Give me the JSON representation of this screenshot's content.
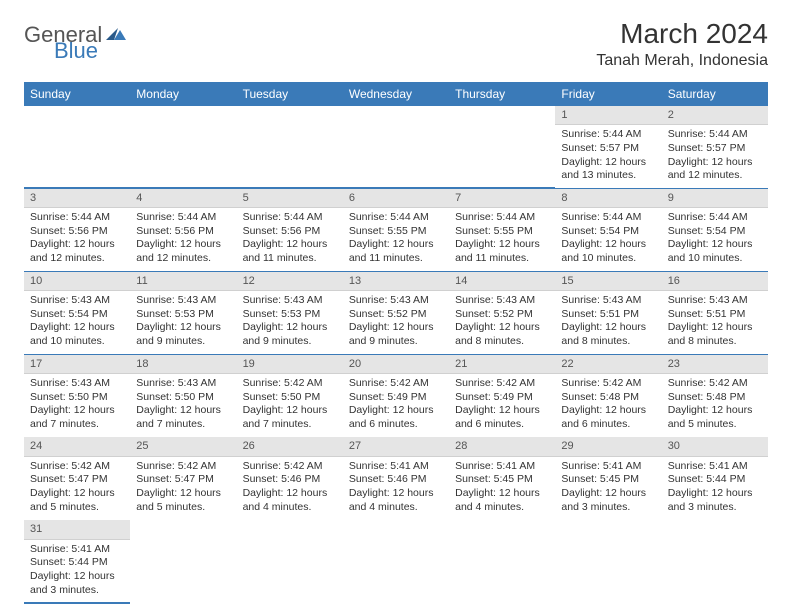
{
  "logo": {
    "main": "General",
    "accent": "Blue"
  },
  "title": "March 2024",
  "location": "Tanah Merah, Indonesia",
  "colors": {
    "header_bg": "#3a7ab8",
    "header_text": "#ffffff",
    "daynum_bg": "#e5e5e5",
    "row_divider": "#3a7ab8",
    "body_text": "#333333"
  },
  "weekdays": [
    "Sunday",
    "Monday",
    "Tuesday",
    "Wednesday",
    "Thursday",
    "Friday",
    "Saturday"
  ],
  "grid": [
    [
      null,
      null,
      null,
      null,
      null,
      {
        "n": "1",
        "sr": "5:44 AM",
        "ss": "5:57 PM",
        "dl": "12 hours and 13 minutes."
      },
      {
        "n": "2",
        "sr": "5:44 AM",
        "ss": "5:57 PM",
        "dl": "12 hours and 12 minutes."
      }
    ],
    [
      {
        "n": "3",
        "sr": "5:44 AM",
        "ss": "5:56 PM",
        "dl": "12 hours and 12 minutes."
      },
      {
        "n": "4",
        "sr": "5:44 AM",
        "ss": "5:56 PM",
        "dl": "12 hours and 12 minutes."
      },
      {
        "n": "5",
        "sr": "5:44 AM",
        "ss": "5:56 PM",
        "dl": "12 hours and 11 minutes."
      },
      {
        "n": "6",
        "sr": "5:44 AM",
        "ss": "5:55 PM",
        "dl": "12 hours and 11 minutes."
      },
      {
        "n": "7",
        "sr": "5:44 AM",
        "ss": "5:55 PM",
        "dl": "12 hours and 11 minutes."
      },
      {
        "n": "8",
        "sr": "5:44 AM",
        "ss": "5:54 PM",
        "dl": "12 hours and 10 minutes."
      },
      {
        "n": "9",
        "sr": "5:44 AM",
        "ss": "5:54 PM",
        "dl": "12 hours and 10 minutes."
      }
    ],
    [
      {
        "n": "10",
        "sr": "5:43 AM",
        "ss": "5:54 PM",
        "dl": "12 hours and 10 minutes."
      },
      {
        "n": "11",
        "sr": "5:43 AM",
        "ss": "5:53 PM",
        "dl": "12 hours and 9 minutes."
      },
      {
        "n": "12",
        "sr": "5:43 AM",
        "ss": "5:53 PM",
        "dl": "12 hours and 9 minutes."
      },
      {
        "n": "13",
        "sr": "5:43 AM",
        "ss": "5:52 PM",
        "dl": "12 hours and 9 minutes."
      },
      {
        "n": "14",
        "sr": "5:43 AM",
        "ss": "5:52 PM",
        "dl": "12 hours and 8 minutes."
      },
      {
        "n": "15",
        "sr": "5:43 AM",
        "ss": "5:51 PM",
        "dl": "12 hours and 8 minutes."
      },
      {
        "n": "16",
        "sr": "5:43 AM",
        "ss": "5:51 PM",
        "dl": "12 hours and 8 minutes."
      }
    ],
    [
      {
        "n": "17",
        "sr": "5:43 AM",
        "ss": "5:50 PM",
        "dl": "12 hours and 7 minutes."
      },
      {
        "n": "18",
        "sr": "5:43 AM",
        "ss": "5:50 PM",
        "dl": "12 hours and 7 minutes."
      },
      {
        "n": "19",
        "sr": "5:42 AM",
        "ss": "5:50 PM",
        "dl": "12 hours and 7 minutes."
      },
      {
        "n": "20",
        "sr": "5:42 AM",
        "ss": "5:49 PM",
        "dl": "12 hours and 6 minutes."
      },
      {
        "n": "21",
        "sr": "5:42 AM",
        "ss": "5:49 PM",
        "dl": "12 hours and 6 minutes."
      },
      {
        "n": "22",
        "sr": "5:42 AM",
        "ss": "5:48 PM",
        "dl": "12 hours and 6 minutes."
      },
      {
        "n": "23",
        "sr": "5:42 AM",
        "ss": "5:48 PM",
        "dl": "12 hours and 5 minutes."
      }
    ],
    [
      {
        "n": "24",
        "sr": "5:42 AM",
        "ss": "5:47 PM",
        "dl": "12 hours and 5 minutes."
      },
      {
        "n": "25",
        "sr": "5:42 AM",
        "ss": "5:47 PM",
        "dl": "12 hours and 5 minutes."
      },
      {
        "n": "26",
        "sr": "5:42 AM",
        "ss": "5:46 PM",
        "dl": "12 hours and 4 minutes."
      },
      {
        "n": "27",
        "sr": "5:41 AM",
        "ss": "5:46 PM",
        "dl": "12 hours and 4 minutes."
      },
      {
        "n": "28",
        "sr": "5:41 AM",
        "ss": "5:45 PM",
        "dl": "12 hours and 4 minutes."
      },
      {
        "n": "29",
        "sr": "5:41 AM",
        "ss": "5:45 PM",
        "dl": "12 hours and 3 minutes."
      },
      {
        "n": "30",
        "sr": "5:41 AM",
        "ss": "5:44 PM",
        "dl": "12 hours and 3 minutes."
      }
    ],
    [
      {
        "n": "31",
        "sr": "5:41 AM",
        "ss": "5:44 PM",
        "dl": "12 hours and 3 minutes."
      },
      null,
      null,
      null,
      null,
      null,
      null
    ]
  ],
  "labels": {
    "sunrise": "Sunrise:",
    "sunset": "Sunset:",
    "daylight": "Daylight:"
  }
}
